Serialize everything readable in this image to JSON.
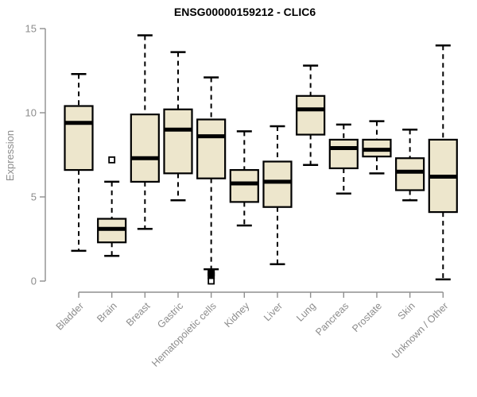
{
  "chart_data": {
    "type": "boxplot",
    "title": "ENSG00000159212 - CLIC6",
    "ylabel": "Expression",
    "xlabel": "",
    "ylim": [
      0,
      15
    ],
    "yticks": [
      0,
      5,
      10,
      15
    ],
    "grid": false,
    "legend": "none",
    "categories": [
      "Bladder",
      "Brain",
      "Breast",
      "Gastric",
      "Hematopoietic cells",
      "Kidney",
      "Liver",
      "Lung",
      "Pancreas",
      "Prostate",
      "Skin",
      "Unknown / Other"
    ],
    "series": [
      {
        "category": "Bladder",
        "whisker_low": 1.8,
        "q1": 6.6,
        "median": 9.4,
        "q3": 10.4,
        "whisker_high": 12.3,
        "outliers_open": [],
        "outliers_filled": []
      },
      {
        "category": "Brain",
        "whisker_low": 1.5,
        "q1": 2.3,
        "median": 3.1,
        "q3": 3.7,
        "whisker_high": 5.9,
        "outliers_open": [
          7.2
        ],
        "outliers_filled": []
      },
      {
        "category": "Breast",
        "whisker_low": 3.1,
        "q1": 5.9,
        "median": 7.3,
        "q3": 9.9,
        "whisker_high": 14.6,
        "outliers_open": [],
        "outliers_filled": []
      },
      {
        "category": "Gastric",
        "whisker_low": 4.8,
        "q1": 6.4,
        "median": 9.0,
        "q3": 10.2,
        "whisker_high": 13.6,
        "outliers_open": [],
        "outliers_filled": []
      },
      {
        "category": "Hematopoietic cells",
        "whisker_low": 0.7,
        "q1": 6.1,
        "median": 8.6,
        "q3": 9.6,
        "whisker_high": 12.1,
        "outliers_open": [
          0.0
        ],
        "outliers_filled": [
          0.5,
          0.33
        ]
      },
      {
        "category": "Kidney",
        "whisker_low": 3.3,
        "q1": 4.7,
        "median": 5.8,
        "q3": 6.6,
        "whisker_high": 8.9,
        "outliers_open": [],
        "outliers_filled": []
      },
      {
        "category": "Liver",
        "whisker_low": 1.0,
        "q1": 4.4,
        "median": 5.9,
        "q3": 7.1,
        "whisker_high": 9.2,
        "outliers_open": [],
        "outliers_filled": []
      },
      {
        "category": "Lung",
        "whisker_low": 6.9,
        "q1": 8.7,
        "median": 10.2,
        "q3": 11.0,
        "whisker_high": 12.8,
        "outliers_open": [],
        "outliers_filled": []
      },
      {
        "category": "Pancreas",
        "whisker_low": 5.2,
        "q1": 6.7,
        "median": 7.9,
        "q3": 8.4,
        "whisker_high": 9.3,
        "outliers_open": [],
        "outliers_filled": []
      },
      {
        "category": "Prostate",
        "whisker_low": 6.4,
        "q1": 7.4,
        "median": 7.8,
        "q3": 8.4,
        "whisker_high": 9.5,
        "outliers_open": [],
        "outliers_filled": []
      },
      {
        "category": "Skin",
        "whisker_low": 4.8,
        "q1": 5.4,
        "median": 6.5,
        "q3": 7.3,
        "whisker_high": 9.0,
        "outliers_open": [],
        "outliers_filled": []
      },
      {
        "category": "Unknown / Other",
        "whisker_low": 0.1,
        "q1": 4.1,
        "median": 6.2,
        "q3": 8.4,
        "whisker_high": 14.0,
        "outliers_open": [],
        "outliers_filled": []
      }
    ],
    "colors": {
      "box_fill": "#EDE6CC",
      "box_border": "#000000",
      "median": "#000000",
      "whisker": "#000000",
      "axis": "#8f8f8f",
      "tick_label": "#8c8c8c",
      "title": "#000000",
      "background": "#ffffff"
    }
  }
}
